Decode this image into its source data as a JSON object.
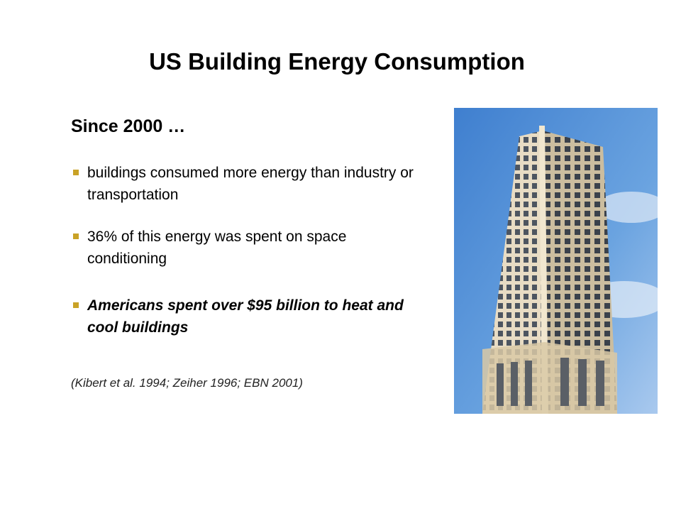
{
  "slide": {
    "title": "US Building Energy Consumption",
    "subtitle": "Since 2000 …",
    "bullets": [
      "buildings consumed more energy than industry or transportation",
      "36% of this energy was spent on space conditioning",
      "Americans spent over $95 billion to heat and cool buildings"
    ],
    "citation": "(Kibert et al. 1994; Zeiher 1996; EBN 2001)"
  }
}
